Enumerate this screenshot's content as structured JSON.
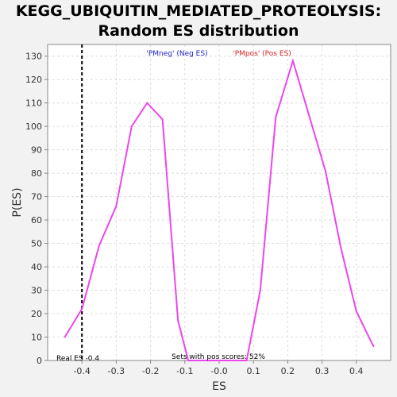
{
  "chart_data": {
    "type": "line",
    "title_line1": "KEGG_UBIQUITIN_MEDIATED_PROTEOLYSIS:",
    "title_line2": "Random ES distribution",
    "xlabel": "ES",
    "ylabel": "P(ES)",
    "xlim": [
      -0.5,
      0.5
    ],
    "ylim": [
      0,
      135
    ],
    "xticks": [
      -0.4,
      -0.3,
      -0.2,
      -0.1,
      0.0,
      0.1,
      0.2,
      0.3,
      0.4
    ],
    "xtick_labels": [
      "-0.4",
      "-0.3",
      "-0.2",
      "-0.1",
      "-0.0",
      "0.1",
      "0.2",
      "0.3",
      "0.4"
    ],
    "yticks": [
      0,
      10,
      20,
      30,
      40,
      50,
      60,
      70,
      80,
      90,
      100,
      110,
      120,
      130
    ],
    "ytick_labels": [
      "0",
      "10",
      "20",
      "30",
      "40",
      "50",
      "60",
      "70",
      "80",
      "90",
      "100",
      "110",
      "120",
      "130"
    ],
    "grid": true,
    "series": [
      {
        "name": "Random ES distribution",
        "color": "#ee44ee",
        "x": [
          -0.45,
          -0.4,
          -0.35,
          -0.3,
          -0.255,
          -0.21,
          -0.165,
          -0.12,
          -0.09,
          0.08,
          0.12,
          0.165,
          0.215,
          0.31,
          0.355,
          0.4,
          0.45
        ],
        "y": [
          10,
          22,
          49,
          66,
          100,
          110,
          103,
          17,
          0,
          0,
          30,
          104,
          128,
          81,
          48,
          21,
          6
        ]
      }
    ],
    "real_es": -0.4,
    "real_es_label": "Real ES -0.4",
    "neg_label": "'PMneg' (Neg ES)",
    "pos_label": "'PMpos' (Pos ES)",
    "pos_scores_label": "Sets with pos scores: 52%",
    "colors": {
      "neg": "#2222cc",
      "pos": "#dd2222",
      "line": "#ee44ee",
      "grid": "#dddddd",
      "axis": "#888888"
    }
  }
}
